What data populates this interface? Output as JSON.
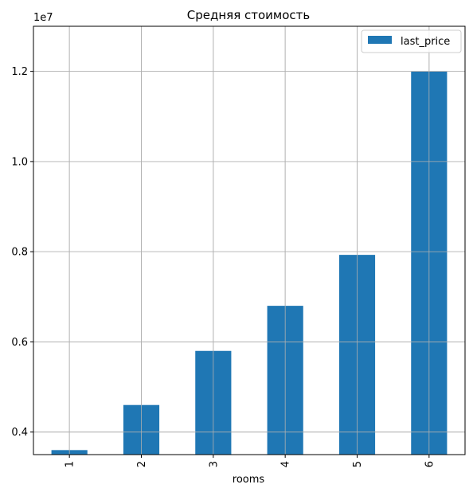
{
  "chart_data": {
    "type": "bar",
    "title": "Средняя стоимость",
    "xlabel": "rooms",
    "ylabel": "",
    "categories": [
      "1",
      "2",
      "3",
      "4",
      "5",
      "6"
    ],
    "series": [
      {
        "name": "last_price",
        "values": [
          3600000,
          4600000,
          5800000,
          6800000,
          7930000,
          12000000
        ]
      }
    ],
    "ylim": [
      3500000,
      13000000
    ],
    "yticks": [
      4000000,
      6000000,
      8000000,
      10000000,
      12000000
    ],
    "ytick_labels": [
      "0.4",
      "0.6",
      "0.8",
      "1.0",
      "1.2"
    ],
    "y_offset_label": "1e7",
    "grid": true,
    "legend_position": "top-right",
    "colors": {
      "bar": "#1f77b4",
      "grid": "#b0b0b0",
      "axis": "#000000"
    }
  }
}
